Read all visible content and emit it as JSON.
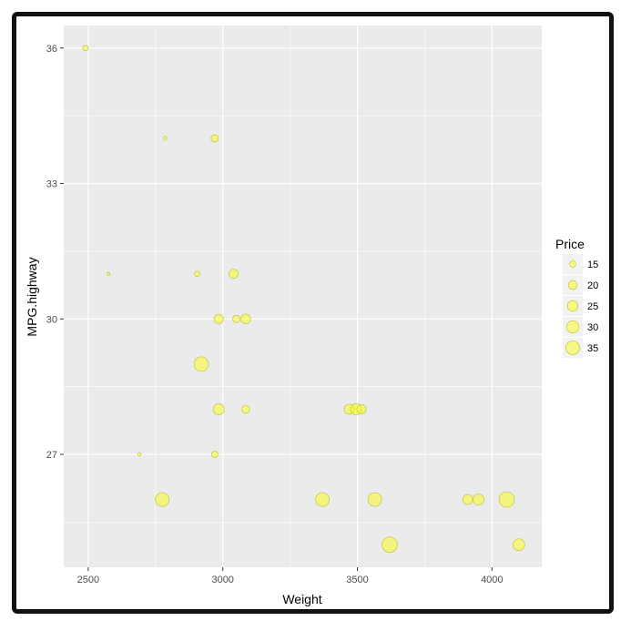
{
  "chart_data": {
    "type": "scatter",
    "title": "",
    "xlabel": "Weight",
    "ylabel": "MPG.highway",
    "xlim": [
      2409,
      4185
    ],
    "ylim": [
      24.5,
      36.5
    ],
    "xticks": [
      2500,
      3000,
      3500,
      4000
    ],
    "yticks": [
      27,
      30,
      33,
      36
    ],
    "grid": true,
    "legend": {
      "title": "Price",
      "position": "right",
      "values": [
        15,
        20,
        25,
        30,
        35
      ]
    },
    "point_color": "#ffff00",
    "point_stroke": "#c8c850",
    "panel_color": "#ebebeb",
    "points": [
      {
        "x": 2490,
        "y": 36,
        "size": 13.5
      },
      {
        "x": 2785,
        "y": 34,
        "size": 11.3
      },
      {
        "x": 2970,
        "y": 34,
        "size": 16.7
      },
      {
        "x": 2575,
        "y": 31,
        "size": 10.5
      },
      {
        "x": 2905,
        "y": 31,
        "size": 13.5
      },
      {
        "x": 3040,
        "y": 31,
        "size": 21
      },
      {
        "x": 2985,
        "y": 30,
        "size": 21
      },
      {
        "x": 3050,
        "y": 30,
        "size": 16.7
      },
      {
        "x": 3085,
        "y": 30,
        "size": 22
      },
      {
        "x": 2920,
        "y": 29,
        "size": 38.5
      },
      {
        "x": 2985,
        "y": 28,
        "size": 25.8
      },
      {
        "x": 3085,
        "y": 28,
        "size": 18
      },
      {
        "x": 3470,
        "y": 28,
        "size": 23
      },
      {
        "x": 3495,
        "y": 28,
        "size": 26
      },
      {
        "x": 3515,
        "y": 28,
        "size": 21
      },
      {
        "x": 2690,
        "y": 27,
        "size": 11
      },
      {
        "x": 2970,
        "y": 27,
        "size": 15
      },
      {
        "x": 2775,
        "y": 26,
        "size": 35
      },
      {
        "x": 3370,
        "y": 26,
        "size": 35
      },
      {
        "x": 3565,
        "y": 26,
        "size": 35
      },
      {
        "x": 3910,
        "y": 26,
        "size": 23
      },
      {
        "x": 3950,
        "y": 26,
        "size": 26
      },
      {
        "x": 4055,
        "y": 26,
        "size": 42.3
      },
      {
        "x": 3620,
        "y": 25,
        "size": 42
      },
      {
        "x": 4100,
        "y": 25,
        "size": 28.6
      }
    ]
  }
}
